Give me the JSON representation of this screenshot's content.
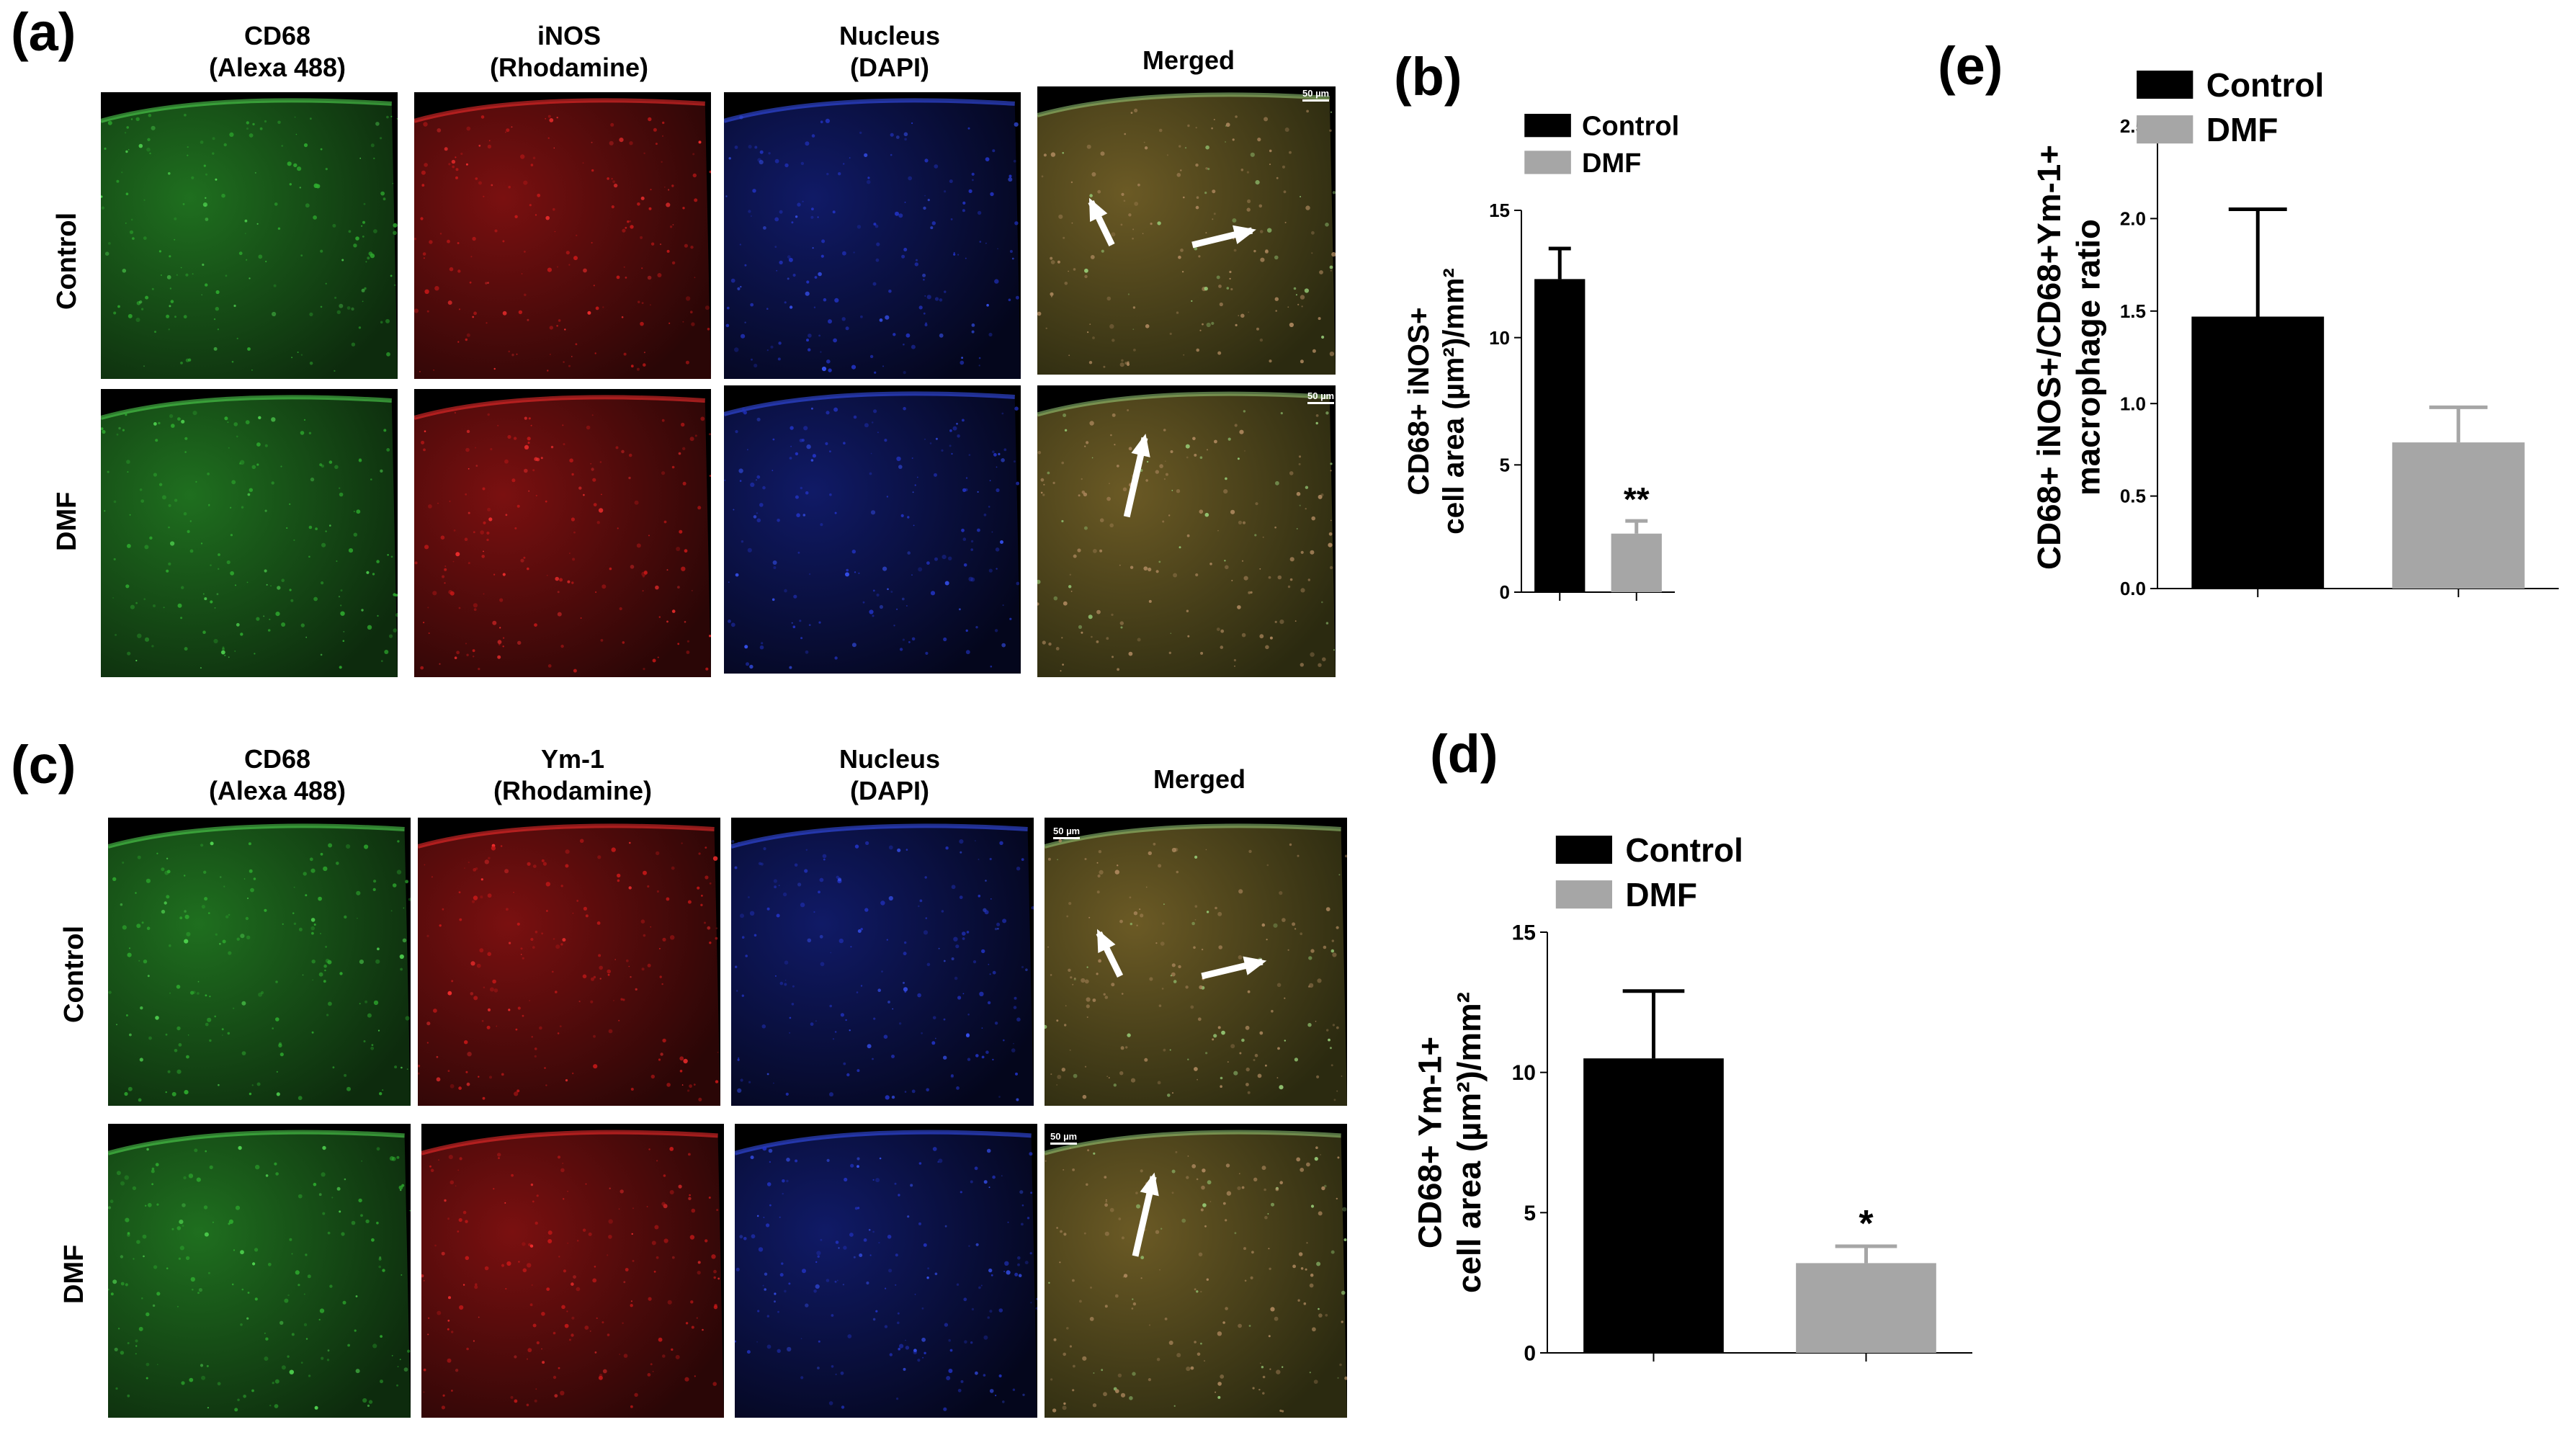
{
  "panel_labels": {
    "a": "(a)",
    "b": "(b)",
    "c": "(c)",
    "d": "(d)",
    "e": "(e)"
  },
  "panel_a": {
    "columns": [
      "CD68\n(Alexa 488)",
      "iNOS\n(Rhodamine)",
      "Nucleus\n(DAPI)",
      "Merged"
    ],
    "rows": [
      "Control",
      "DMF"
    ],
    "scale_bar": "50 µm"
  },
  "panel_c": {
    "columns": [
      "CD68\n(Alexa 488)",
      "Ym-1\n(Rhodamine)",
      "Nucleus\n(DAPI)",
      "Merged"
    ],
    "rows": [
      "Control",
      "DMF"
    ],
    "scale_bar": "50 µm"
  },
  "colors": {
    "control": "#000000",
    "dmf": "#a6a6a6",
    "green": "#2fae2f",
    "red": "#d81b1b",
    "blue": "#2a3be0"
  },
  "chart_data": [
    {
      "id": "b",
      "type": "bar",
      "categories": [
        "Control",
        "DMF"
      ],
      "values": [
        12.3,
        2.3
      ],
      "errors": [
        1.2,
        0.5
      ],
      "annotations": [
        "",
        "**"
      ],
      "ylabel": "CD68+ iNOS+\ncell area (µm²)/mm²",
      "ylim": [
        0,
        15
      ],
      "yticks": [
        "0",
        "5",
        "10",
        "15"
      ],
      "legend": [
        "Control",
        "DMF"
      ]
    },
    {
      "id": "d",
      "type": "bar",
      "categories": [
        "Control",
        "DMF"
      ],
      "values": [
        10.5,
        3.2
      ],
      "errors": [
        2.4,
        0.6
      ],
      "annotations": [
        "",
        "*"
      ],
      "ylabel": "CD68+ Ym-1+\ncell area (µm²)/mm²",
      "ylim": [
        0,
        15
      ],
      "yticks": [
        "0",
        "5",
        "10",
        "15"
      ],
      "legend": [
        "Control",
        "DMF"
      ]
    },
    {
      "id": "e",
      "type": "bar",
      "categories": [
        "Control",
        "DMF"
      ],
      "values": [
        1.47,
        0.79
      ],
      "errors": [
        0.58,
        0.19
      ],
      "annotations": [
        "",
        ""
      ],
      "ylabel": "CD68+ iNOS+/CD68+Ym-1+\nmacrophage ratio",
      "ylim": [
        0,
        2.5
      ],
      "yticks": [
        "0.0",
        "0.5",
        "1.0",
        "1.5",
        "2.0",
        "2.5"
      ],
      "legend": [
        "Control",
        "DMF"
      ]
    }
  ]
}
